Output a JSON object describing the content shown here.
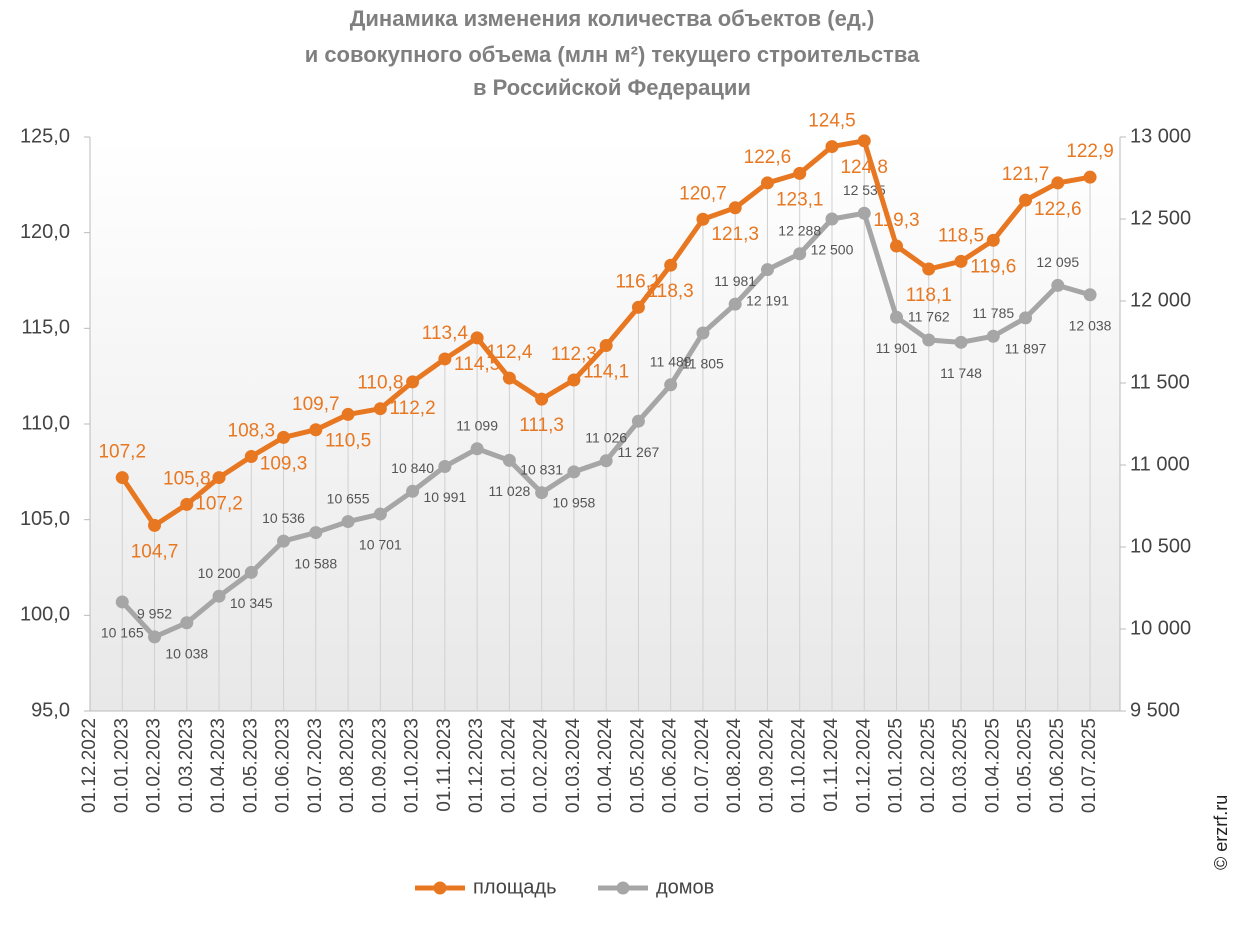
{
  "chart_data": {
    "type": "line",
    "title": [
      "Динамика изменения количества объектов (ед.)",
      "и совокупного объема (млн м²) текущего строительства",
      "в Российской Федерации"
    ],
    "watermark": "© erzrf.ru",
    "categories": [
      "01.12.2022",
      "01.01.2023",
      "01.02.2023",
      "01.03.2023",
      "01.04.2023",
      "01.05.2023",
      "01.06.2023",
      "01.07.2023",
      "01.08.2023",
      "01.09.2023",
      "01.10.2023",
      "01.11.2023",
      "01.12.2023",
      "01.01.2024",
      "01.02.2024",
      "01.03.2024",
      "01.04.2024",
      "01.05.2024",
      "01.06.2024",
      "01.07.2024",
      "01.08.2024",
      "01.09.2024",
      "01.10.2024",
      "01.11.2024",
      "01.12.2024",
      "01.01.2025",
      "01.02.2025",
      "01.03.2025",
      "01.04.2025",
      "01.05.2025",
      "01.06.2025",
      "01.07.2025"
    ],
    "series": [
      {
        "name": "площадь",
        "color": "#e87722",
        "axis": "y",
        "values": [
          null,
          107.2,
          104.7,
          105.8,
          107.2,
          108.3,
          109.3,
          109.7,
          110.5,
          110.8,
          112.2,
          113.4,
          114.5,
          112.4,
          111.3,
          112.3,
          114.1,
          116.1,
          118.3,
          120.7,
          121.3,
          122.6,
          123.1,
          124.5,
          124.8,
          119.3,
          118.1,
          118.5,
          119.6,
          121.7,
          122.6,
          122.9
        ],
        "value_labels": [
          null,
          "107,2",
          "104,7",
          "105,8",
          "107,2",
          "108,3",
          "109,3",
          "109,7",
          "110,5",
          "110,8",
          "112,2",
          "113,4",
          "114,5",
          "112,4",
          "111,3",
          "112,3",
          "114,1",
          "116,1",
          "118,3",
          "120,7",
          "121,3",
          "122,6",
          "123,1",
          "124,5",
          "124,8",
          "119,3",
          "118,1",
          "118,5",
          "119,6",
          "121,7",
          "122,6",
          "122,9"
        ]
      },
      {
        "name": "домов",
        "color": "#a6a6a6",
        "axis": "y2",
        "values": [
          null,
          10165,
          9952,
          10038,
          10200,
          10345,
          10536,
          10588,
          10655,
          10701,
          10840,
          10991,
          11099,
          11028,
          10831,
          10958,
          11026,
          11267,
          11489,
          11805,
          11981,
          12191,
          12288,
          12500,
          12535,
          11901,
          11762,
          11748,
          11785,
          11897,
          12095,
          12038
        ],
        "value_labels": [
          null,
          "10 165",
          "9 952",
          "10 038",
          "10 200",
          "10 345",
          "10 536",
          "10 588",
          "10 655",
          "10 701",
          "10 840",
          "10 991",
          "11 099",
          "11 028",
          "10 831",
          "10 958",
          "11 026",
          "11 267",
          "11 489",
          "11 805",
          "11 981",
          "12 191",
          "12 288",
          "12 500",
          "12 535",
          "11 901",
          "11 762",
          "11 748",
          "11 785",
          "11 897",
          "12 095",
          "12 038"
        ]
      }
    ],
    "ylim": [
      95,
      125
    ],
    "yticks": [
      {
        "value": 95,
        "label": "95,0"
      },
      {
        "value": 100,
        "label": "100,0"
      },
      {
        "value": 105,
        "label": "105,0"
      },
      {
        "value": 110,
        "label": "110,0"
      },
      {
        "value": 115,
        "label": "115,0"
      },
      {
        "value": 120,
        "label": "120,0"
      },
      {
        "value": 125,
        "label": "125,0"
      }
    ],
    "y2lim": [
      9500,
      13000
    ],
    "y2ticks": [
      {
        "value": 9500,
        "label": "9 500"
      },
      {
        "value": 10000,
        "label": "10 000"
      },
      {
        "value": 10500,
        "label": "10 500"
      },
      {
        "value": 11000,
        "label": "11 000"
      },
      {
        "value": 11500,
        "label": "11 500"
      },
      {
        "value": 12000,
        "label": "12 000"
      },
      {
        "value": 12500,
        "label": "12 500"
      },
      {
        "value": 13000,
        "label": "13 000"
      }
    ],
    "legend": "bottom"
  }
}
